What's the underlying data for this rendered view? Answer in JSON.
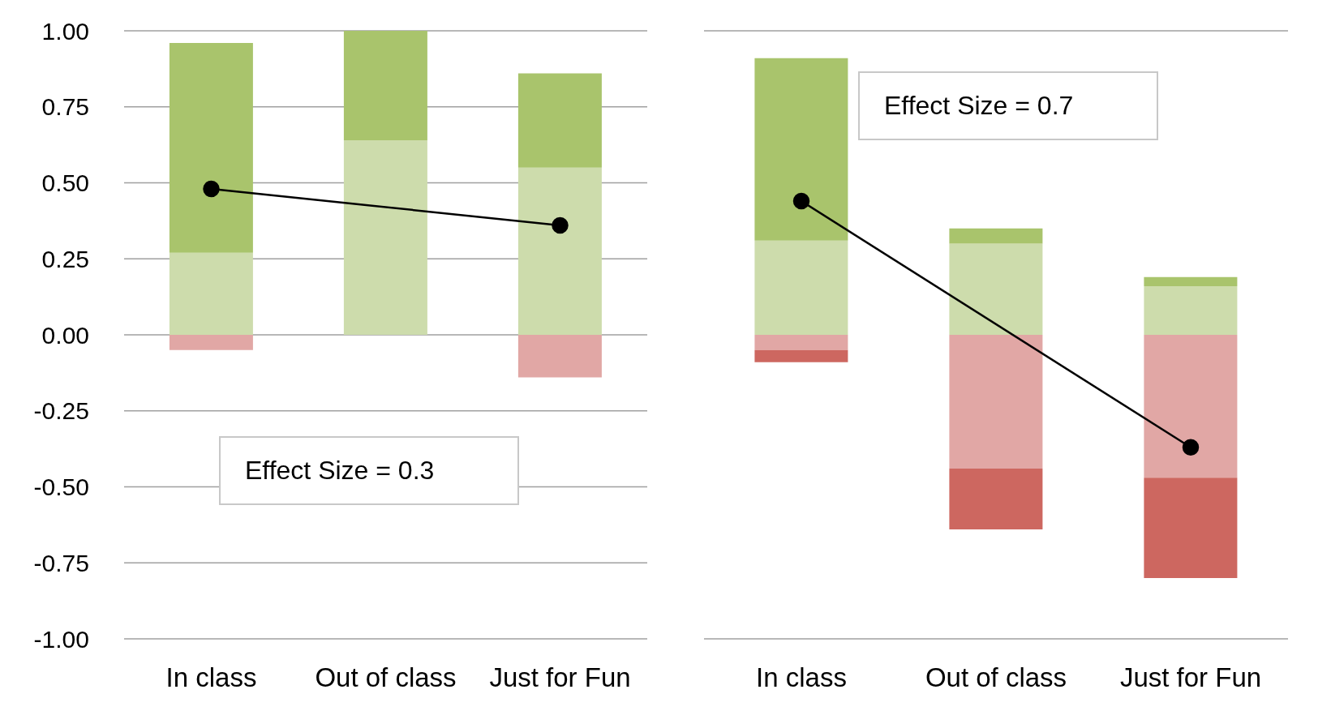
{
  "chart_data": [
    {
      "type": "bar",
      "stacked": true,
      "categories": [
        "In class",
        "Out of class",
        "Just for Fun"
      ],
      "ylim": [
        -1,
        1
      ],
      "yticks": [
        {
          "value": -1,
          "label": "-1.00"
        },
        {
          "value": -0.75,
          "label": "-0.75"
        },
        {
          "value": -0.5,
          "label": "-0.50"
        },
        {
          "value": -0.25,
          "label": "-0.25"
        },
        {
          "value": 0,
          "label": "0.00"
        },
        {
          "value": 0.25,
          "label": "0.25"
        },
        {
          "value": 0.5,
          "label": "0.50"
        },
        {
          "value": 0.75,
          "label": "0.75"
        },
        {
          "value": 1,
          "label": "1.00"
        }
      ],
      "grid": "y",
      "annotations": [
        "Effect Size = 0.3"
      ],
      "series": [
        {
          "color": "#cddcac",
          "values": [
            0.27,
            0.64,
            0.55
          ]
        },
        {
          "color": "#a9c46c",
          "values": [
            0.69,
            0.36,
            0.31
          ]
        },
        {
          "color": "#e1a7a5",
          "values": [
            -0.05,
            0,
            -0.14
          ]
        },
        {
          "type": "line",
          "color": "#000000",
          "marker": "circle",
          "values": [
            0.48,
            null,
            0.36
          ]
        }
      ]
    },
    {
      "type": "bar",
      "stacked": true,
      "categories": [
        "In class",
        "Out of class",
        "Just for Fun"
      ],
      "ylim": [
        -1,
        1
      ],
      "yticks": [
        {
          "value": -1,
          "label": null
        },
        {
          "value": -0.75,
          "label": null
        },
        {
          "value": -0.5,
          "label": null
        },
        {
          "value": -0.25,
          "label": null
        },
        {
          "value": 0,
          "label": null
        },
        {
          "value": 0.25,
          "label": null
        },
        {
          "value": 0.5,
          "label": null
        },
        {
          "value": 0.75,
          "label": null
        },
        {
          "value": 1,
          "label": null
        }
      ],
      "tick_labels": "x",
      "grid": "y",
      "annotations": [
        "Effect Size = 0.7"
      ],
      "series": [
        {
          "color": "#cddcac",
          "values": [
            0.31,
            0.3,
            0.16
          ]
        },
        {
          "color": "#a9c46c",
          "values": [
            0.6,
            0.05,
            0.03
          ]
        },
        {
          "color": "#e1a7a5",
          "values": [
            -0.05,
            -0.44,
            -0.47
          ]
        },
        {
          "color": "#cd6760",
          "values": [
            -0.04,
            -0.2,
            -0.33
          ]
        },
        {
          "type": "line",
          "color": "#000000",
          "marker": "circle",
          "values": [
            0.44,
            null,
            -0.37
          ]
        }
      ]
    }
  ]
}
